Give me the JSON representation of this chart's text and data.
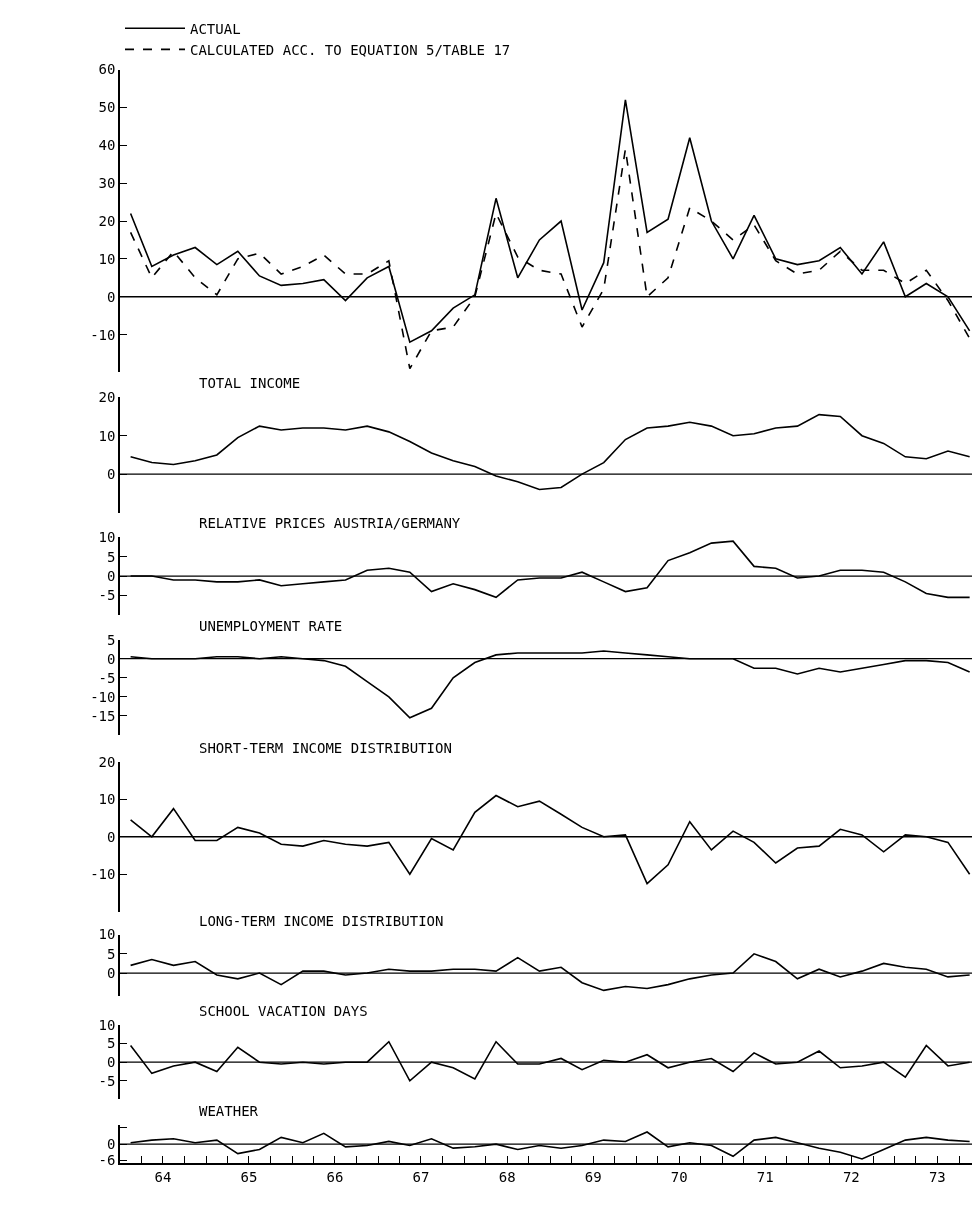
{
  "chart_data": [
    {
      "type": "line",
      "legend": "top left",
      "tick_labels": "y",
      "grid": false,
      "ref_lines": [
        {
          "axis": "y",
          "value": 0
        }
      ],
      "xlim": [
        "1964-01-01",
        "1973-11-25"
      ],
      "ylim": [
        -20,
        60
      ],
      "yticks": [
        -10,
        0,
        10,
        20,
        30,
        40,
        50,
        60
      ],
      "x": [
        "1964-02-15",
        "1964-05-15",
        "1964-08-15",
        "1964-11-15",
        "1965-02-15",
        "1965-05-15",
        "1965-08-15",
        "1965-11-15",
        "1966-02-15",
        "1966-05-15",
        "1966-08-15",
        "1966-11-15",
        "1967-02-15",
        "1967-05-15",
        "1967-08-15",
        "1967-11-15",
        "1968-02-15",
        "1968-05-15",
        "1968-08-15",
        "1968-11-15",
        "1969-02-15",
        "1969-05-15",
        "1969-08-15",
        "1969-11-15",
        "1970-02-15",
        "1970-05-15",
        "1970-08-15",
        "1970-11-15",
        "1971-02-15",
        "1971-05-15",
        "1971-08-15",
        "1971-11-15",
        "1972-02-15",
        "1972-05-15",
        "1972-08-15",
        "1972-11-15",
        "1973-02-15",
        "1973-05-15",
        "1973-08-15",
        "1973-11-15"
      ],
      "series": [
        {
          "name": "ACTUAL",
          "color": "#000000",
          "line_style": "solid",
          "values": [
            22,
            8,
            11,
            13,
            8.5,
            12,
            5.5,
            3,
            3.5,
            4.5,
            -1,
            5,
            8,
            -12,
            -9,
            -3,
            0.5,
            26,
            5,
            15,
            20,
            -3.5,
            9,
            52,
            17,
            20.5,
            42,
            20,
            10,
            21.5,
            10,
            8.5,
            9.5,
            13,
            6,
            14.5,
            0,
            3.5,
            0,
            -9
          ]
        },
        {
          "name": "CALCULATED ACC. TO EQUATION 5/TABLE 17",
          "color": "#000000",
          "line_style": "dashed",
          "values": [
            17,
            5,
            12,
            5,
            0.5,
            10,
            11.5,
            6,
            8,
            11,
            6,
            6,
            9.5,
            -19,
            -9,
            -8,
            0,
            22,
            10.5,
            7,
            6,
            -8,
            2,
            39,
            0,
            5,
            23.5,
            20,
            15,
            19,
            9.5,
            6,
            7,
            12,
            7,
            7,
            3.5,
            7,
            -1,
            -11
          ]
        }
      ]
    },
    {
      "type": "line",
      "title": "TOTAL INCOME",
      "tick_labels": "y",
      "grid": false,
      "ref_lines": [
        {
          "axis": "y",
          "value": 0
        }
      ],
      "xlim": [
        "1964-01-01",
        "1973-11-25"
      ],
      "ylim": [
        -10,
        20
      ],
      "yticks": [
        0,
        10,
        20
      ],
      "x": [
        "1964-02-15",
        "1964-05-15",
        "1964-08-15",
        "1964-11-15",
        "1965-02-15",
        "1965-05-15",
        "1965-08-15",
        "1965-11-15",
        "1966-02-15",
        "1966-05-15",
        "1966-08-15",
        "1966-11-15",
        "1967-02-15",
        "1967-05-15",
        "1967-08-15",
        "1967-11-15",
        "1968-02-15",
        "1968-05-15",
        "1968-08-15",
        "1968-11-15",
        "1969-02-15",
        "1969-05-15",
        "1969-08-15",
        "1969-11-15",
        "1970-02-15",
        "1970-05-15",
        "1970-08-15",
        "1970-11-15",
        "1971-02-15",
        "1971-05-15",
        "1971-08-15",
        "1971-11-15",
        "1972-02-15",
        "1972-05-15",
        "1972-08-15",
        "1972-11-15",
        "1973-02-15",
        "1973-05-15",
        "1973-08-15",
        "1973-11-15"
      ],
      "series": [
        {
          "color": "#000000",
          "line_style": "solid",
          "values": [
            4.5,
            3,
            2.5,
            3.5,
            5,
            9.5,
            12.5,
            11.5,
            12,
            12,
            11.5,
            12.5,
            11,
            8.5,
            5.5,
            3.5,
            2,
            -0.5,
            -2,
            -4,
            -3.5,
            0,
            3,
            9,
            12,
            12.5,
            13.5,
            12.5,
            10,
            10.5,
            12,
            12.5,
            15.5,
            15,
            10,
            8,
            4.5,
            4,
            6,
            4.5
          ]
        }
      ]
    },
    {
      "type": "line",
      "title": "RELATIVE PRICES AUSTRIA/GERMANY",
      "tick_labels": "y",
      "grid": false,
      "ref_lines": [
        {
          "axis": "y",
          "value": 0
        }
      ],
      "xlim": [
        "1964-01-01",
        "1973-11-25"
      ],
      "ylim": [
        -10,
        10
      ],
      "yticks": [
        -5,
        0,
        5,
        10
      ],
      "x": [
        "1964-02-15",
        "1964-05-15",
        "1964-08-15",
        "1964-11-15",
        "1965-02-15",
        "1965-05-15",
        "1965-08-15",
        "1965-11-15",
        "1966-02-15",
        "1966-05-15",
        "1966-08-15",
        "1966-11-15",
        "1967-02-15",
        "1967-05-15",
        "1967-08-15",
        "1967-11-15",
        "1968-02-15",
        "1968-05-15",
        "1968-08-15",
        "1968-11-15",
        "1969-02-15",
        "1969-05-15",
        "1969-08-15",
        "1969-11-15",
        "1970-02-15",
        "1970-05-15",
        "1970-08-15",
        "1970-11-15",
        "1971-02-15",
        "1971-05-15",
        "1971-08-15",
        "1971-11-15",
        "1972-02-15",
        "1972-05-15",
        "1972-08-15",
        "1972-11-15",
        "1973-02-15",
        "1973-05-15",
        "1973-08-15",
        "1973-11-15"
      ],
      "series": [
        {
          "color": "#000000",
          "line_style": "solid",
          "values": [
            0,
            0,
            -1,
            -1,
            -1.5,
            -1.5,
            -1,
            -2.5,
            -2,
            -1.5,
            -1,
            1.5,
            2,
            1,
            -4,
            -2,
            -3.5,
            -5.5,
            -1,
            -0.5,
            -0.5,
            1,
            -1.5,
            -4,
            -3,
            4,
            6,
            8.5,
            9,
            2.5,
            2,
            -0.5,
            0,
            1.5,
            1.5,
            1,
            -1.5,
            -4.5,
            -5.5,
            -5.5
          ]
        }
      ]
    },
    {
      "type": "line",
      "title": "UNEMPLOYMENT RATE",
      "tick_labels": "y",
      "grid": false,
      "ref_lines": [
        {
          "axis": "y",
          "value": 0
        }
      ],
      "xlim": [
        "1964-01-01",
        "1973-11-25"
      ],
      "ylim": [
        -20,
        5
      ],
      "yticks": [
        -15,
        -10,
        -5,
        0,
        5
      ],
      "x": [
        "1964-02-15",
        "1964-05-15",
        "1964-08-15",
        "1964-11-15",
        "1965-02-15",
        "1965-05-15",
        "1965-08-15",
        "1965-11-15",
        "1966-02-15",
        "1966-05-15",
        "1966-08-15",
        "1966-11-15",
        "1967-02-15",
        "1967-05-15",
        "1967-08-15",
        "1967-11-15",
        "1968-02-15",
        "1968-05-15",
        "1968-08-15",
        "1968-11-15",
        "1969-02-15",
        "1969-05-15",
        "1969-08-15",
        "1969-11-15",
        "1970-02-15",
        "1970-05-15",
        "1970-08-15",
        "1970-11-15",
        "1971-02-15",
        "1971-05-15",
        "1971-08-15",
        "1971-11-15",
        "1972-02-15",
        "1972-05-15",
        "1972-08-15",
        "1972-11-15",
        "1973-02-15",
        "1973-05-15",
        "1973-08-15",
        "1973-11-15"
      ],
      "series": [
        {
          "color": "#000000",
          "line_style": "solid",
          "values": [
            0.5,
            0,
            0,
            0,
            0.5,
            0.5,
            0,
            0.5,
            0,
            -0.5,
            -2,
            -6,
            -10,
            -15.5,
            -13,
            -5,
            -1,
            1,
            1.5,
            1.5,
            1.5,
            1.5,
            2,
            1.5,
            1,
            0.5,
            0,
            0,
            0,
            -2.5,
            -2.5,
            -4,
            -2.5,
            -3.5,
            -2.5,
            -1.5,
            -0.5,
            -0.5,
            -1,
            -3.5
          ]
        }
      ]
    },
    {
      "type": "line",
      "title": "SHORT-TERM INCOME DISTRIBUTION",
      "tick_labels": "y",
      "grid": false,
      "ref_lines": [
        {
          "axis": "y",
          "value": 0
        }
      ],
      "xlim": [
        "1964-01-01",
        "1973-11-25"
      ],
      "ylim": [
        -20,
        20
      ],
      "yticks": [
        -10,
        0,
        10,
        20
      ],
      "x": [
        "1964-02-15",
        "1964-05-15",
        "1964-08-15",
        "1964-11-15",
        "1965-02-15",
        "1965-05-15",
        "1965-08-15",
        "1965-11-15",
        "1966-02-15",
        "1966-05-15",
        "1966-08-15",
        "1966-11-15",
        "1967-02-15",
        "1967-05-15",
        "1967-08-15",
        "1967-11-15",
        "1968-02-15",
        "1968-05-15",
        "1968-08-15",
        "1968-11-15",
        "1969-02-15",
        "1969-05-15",
        "1969-08-15",
        "1969-11-15",
        "1970-02-15",
        "1970-05-15",
        "1970-08-15",
        "1970-11-15",
        "1971-02-15",
        "1971-05-15",
        "1971-08-15",
        "1971-11-15",
        "1972-02-15",
        "1972-05-15",
        "1972-08-15",
        "1972-11-15",
        "1973-02-15",
        "1973-05-15",
        "1973-08-15",
        "1973-11-15"
      ],
      "series": [
        {
          "color": "#000000",
          "line_style": "solid",
          "values": [
            4.5,
            0,
            7.5,
            -1,
            -1,
            2.5,
            1,
            -2,
            -2.5,
            -1,
            -2,
            -2.5,
            -1.5,
            -10,
            -0.5,
            -3.5,
            6.5,
            11,
            8,
            9.5,
            6,
            2.5,
            0,
            0.5,
            -12.5,
            -7.5,
            4,
            -3.5,
            1.5,
            -1.5,
            -7,
            -3,
            -2.5,
            2,
            0.5,
            -4,
            0.5,
            0,
            -1.5,
            -10
          ]
        }
      ]
    },
    {
      "type": "line",
      "title": "LONG-TERM INCOME DISTRIBUTION",
      "tick_labels": "y",
      "grid": false,
      "ref_lines": [
        {
          "axis": "y",
          "value": 0
        }
      ],
      "xlim": [
        "1964-01-01",
        "1973-11-25"
      ],
      "ylim": [
        -6,
        10
      ],
      "yticks": [
        0,
        5,
        10
      ],
      "x": [
        "1964-02-15",
        "1964-05-15",
        "1964-08-15",
        "1964-11-15",
        "1965-02-15",
        "1965-05-15",
        "1965-08-15",
        "1965-11-15",
        "1966-02-15",
        "1966-05-15",
        "1966-08-15",
        "1966-11-15",
        "1967-02-15",
        "1967-05-15",
        "1967-08-15",
        "1967-11-15",
        "1968-02-15",
        "1968-05-15",
        "1968-08-15",
        "1968-11-15",
        "1969-02-15",
        "1969-05-15",
        "1969-08-15",
        "1969-11-15",
        "1970-02-15",
        "1970-05-15",
        "1970-08-15",
        "1970-11-15",
        "1971-02-15",
        "1971-05-15",
        "1971-08-15",
        "1971-11-15",
        "1972-02-15",
        "1972-05-15",
        "1972-08-15",
        "1972-11-15",
        "1973-02-15",
        "1973-05-15",
        "1973-08-15",
        "1973-11-15"
      ],
      "series": [
        {
          "color": "#000000",
          "line_style": "solid",
          "values": [
            2,
            3.5,
            2,
            3,
            -0.5,
            -1.5,
            0,
            -3,
            0.5,
            0.5,
            -0.5,
            0,
            1,
            0.5,
            0.5,
            1,
            1,
            0.5,
            4,
            0.5,
            1.5,
            -2.5,
            -4.5,
            -3.5,
            -4,
            -3,
            -1.5,
            -0.5,
            0,
            5,
            3,
            -1.5,
            1,
            -1,
            0.5,
            2.5,
            1.5,
            1,
            -1,
            -0.5
          ]
        }
      ]
    },
    {
      "type": "line",
      "title": "SCHOOL VACATION DAYS",
      "tick_labels": "y",
      "grid": false,
      "ref_lines": [
        {
          "axis": "y",
          "value": 0
        }
      ],
      "xlim": [
        "1964-01-01",
        "1973-11-25"
      ],
      "ylim": [
        -10,
        10
      ],
      "yticks": [
        -5,
        0,
        5,
        10
      ],
      "x": [
        "1964-02-15",
        "1964-05-15",
        "1964-08-15",
        "1964-11-15",
        "1965-02-15",
        "1965-05-15",
        "1965-08-15",
        "1965-11-15",
        "1966-02-15",
        "1966-05-15",
        "1966-08-15",
        "1966-11-15",
        "1967-02-15",
        "1967-05-15",
        "1967-08-15",
        "1967-11-15",
        "1968-02-15",
        "1968-05-15",
        "1968-08-15",
        "1968-11-15",
        "1969-02-15",
        "1969-05-15",
        "1969-08-15",
        "1969-11-15",
        "1970-02-15",
        "1970-05-15",
        "1970-08-15",
        "1970-11-15",
        "1971-02-15",
        "1971-05-15",
        "1971-08-15",
        "1971-11-15",
        "1972-02-15",
        "1972-05-15",
        "1972-08-15",
        "1972-11-15",
        "1973-02-15",
        "1973-05-15",
        "1973-08-15",
        "1973-11-15"
      ],
      "series": [
        {
          "color": "#000000",
          "line_style": "solid",
          "values": [
            4.5,
            -3,
            -1,
            0,
            -2.5,
            4,
            0,
            -0.5,
            0,
            -0.5,
            0,
            0,
            5.5,
            -5,
            0,
            -1.5,
            -4.5,
            5.5,
            -0.5,
            -0.5,
            1,
            -2,
            0.5,
            0,
            2,
            -1.5,
            0,
            1,
            -2.5,
            2.5,
            -0.5,
            0,
            3,
            -1.5,
            -1,
            0,
            -4,
            4.5,
            -1,
            0
          ]
        }
      ]
    },
    {
      "type": "line",
      "title": "WEATHER",
      "grid": false,
      "ref_lines": [
        {
          "axis": "y",
          "value": 0
        }
      ],
      "xlim": [
        "1964-01-01",
        "1973-11-25"
      ],
      "ylim": [
        -7,
        7
      ],
      "yticks": [
        -6,
        0,
        {
          "value": 6,
          "label": null
        }
      ],
      "xticks": [
        {
          "value": "1964-01-01",
          "label": null
        },
        {
          "value": "1964-04-01",
          "label": null
        },
        {
          "value": "1964-07-01",
          "label": "64"
        },
        {
          "value": "1964-10-01",
          "label": null
        },
        {
          "value": "1965-01-01",
          "label": null
        },
        {
          "value": "1965-04-01",
          "label": null
        },
        {
          "value": "1965-07-01",
          "label": "65"
        },
        {
          "value": "1965-10-01",
          "label": null
        },
        {
          "value": "1966-01-01",
          "label": null
        },
        {
          "value": "1966-04-01",
          "label": null
        },
        {
          "value": "1966-07-01",
          "label": "66"
        },
        {
          "value": "1966-10-01",
          "label": null
        },
        {
          "value": "1967-01-01",
          "label": null
        },
        {
          "value": "1967-04-01",
          "label": null
        },
        {
          "value": "1967-07-01",
          "label": "67"
        },
        {
          "value": "1967-10-01",
          "label": null
        },
        {
          "value": "1968-01-01",
          "label": null
        },
        {
          "value": "1968-04-01",
          "label": null
        },
        {
          "value": "1968-07-01",
          "label": "68"
        },
        {
          "value": "1968-10-01",
          "label": null
        },
        {
          "value": "1969-01-01",
          "label": null
        },
        {
          "value": "1969-04-01",
          "label": null
        },
        {
          "value": "1969-07-01",
          "label": "69"
        },
        {
          "value": "1969-10-01",
          "label": null
        },
        {
          "value": "1970-01-01",
          "label": null
        },
        {
          "value": "1970-04-01",
          "label": null
        },
        {
          "value": "1970-07-01",
          "label": "70"
        },
        {
          "value": "1970-10-01",
          "label": null
        },
        {
          "value": "1971-01-01",
          "label": null
        },
        {
          "value": "1971-04-01",
          "label": null
        },
        {
          "value": "1971-07-01",
          "label": "71"
        },
        {
          "value": "1971-10-01",
          "label": null
        },
        {
          "value": "1972-01-01",
          "label": null
        },
        {
          "value": "1972-04-01",
          "label": null
        },
        {
          "value": "1972-07-01",
          "label": "72"
        },
        {
          "value": "1972-10-01",
          "label": null
        },
        {
          "value": "1973-01-01",
          "label": null
        },
        {
          "value": "1973-04-01",
          "label": null
        },
        {
          "value": "1973-07-01",
          "label": "73"
        },
        {
          "value": "1973-10-01",
          "label": null
        }
      ],
      "x": [
        "1964-02-15",
        "1964-05-15",
        "1964-08-15",
        "1964-11-15",
        "1965-02-15",
        "1965-05-15",
        "1965-08-15",
        "1965-11-15",
        "1966-02-15",
        "1966-05-15",
        "1966-08-15",
        "1966-11-15",
        "1967-02-15",
        "1967-05-15",
        "1967-08-15",
        "1967-11-15",
        "1968-02-15",
        "1968-05-15",
        "1968-08-15",
        "1968-11-15",
        "1969-02-15",
        "1969-05-15",
        "1969-08-15",
        "1969-11-15",
        "1970-02-15",
        "1970-05-15",
        "1970-08-15",
        "1970-11-15",
        "1971-02-15",
        "1971-05-15",
        "1971-08-15",
        "1971-11-15",
        "1972-02-15",
        "1972-05-15",
        "1972-08-15",
        "1972-11-15",
        "1973-02-15",
        "1973-05-15",
        "1973-08-15",
        "1973-11-15"
      ],
      "series": [
        {
          "color": "#000000",
          "line_style": "solid",
          "values": [
            0.5,
            1.5,
            2,
            0.5,
            1.5,
            -3.5,
            -2,
            2.5,
            0.5,
            4,
            -1,
            -0.5,
            1,
            -0.5,
            2,
            -1.5,
            -1,
            0,
            -2,
            -0.5,
            -1.5,
            -0.5,
            1.5,
            1,
            4.5,
            -1,
            0.5,
            -0.5,
            -4.5,
            1.5,
            2.5,
            0.5,
            -1.5,
            -3,
            -5.5,
            -2,
            1.5,
            2.5,
            1.5,
            1
          ]
        }
      ]
    }
  ]
}
